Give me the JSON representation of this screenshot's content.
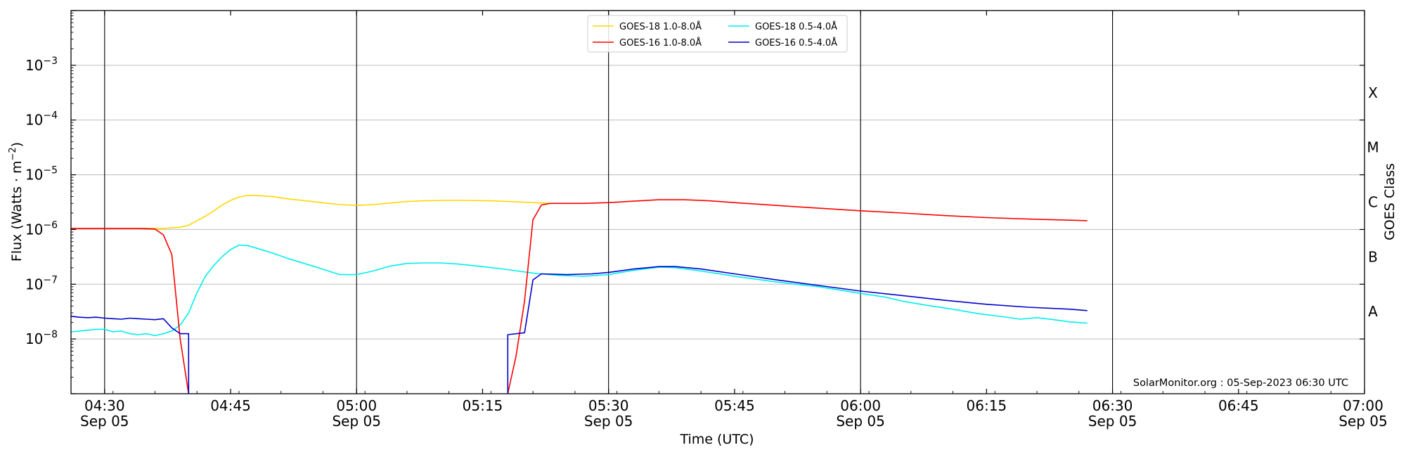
{
  "chart_data": {
    "type": "line",
    "xlabel": "Time (UTC)",
    "ylabel_main": "Flux (Watts · m",
    "ylabel_sup": "−2",
    "ylabel_close": ")",
    "right_axis_label": "GOES Class",
    "ylim": [
      1e-09,
      0.01
    ],
    "log_y": true,
    "xlim": [
      "04:26",
      "07:00"
    ],
    "grid": "horizontal at decades",
    "legend_position": "top-center",
    "credit": "SolarMonitor.org : 05-Sep-2023 06:30 UTC",
    "y_ticks": [
      {
        "base": "10",
        "exp": "−3",
        "value": 0.001
      },
      {
        "base": "10",
        "exp": "−4",
        "value": 0.0001
      },
      {
        "base": "10",
        "exp": "−5",
        "value": 1e-05
      },
      {
        "base": "10",
        "exp": "−6",
        "value": 1e-06
      },
      {
        "base": "10",
        "exp": "−7",
        "value": 1e-07
      },
      {
        "base": "10",
        "exp": "−8",
        "value": 1e-08
      }
    ],
    "x_ticks": [
      {
        "time": "04:30",
        "date": "Sep 05",
        "line": true
      },
      {
        "time": "04:45",
        "date": ""
      },
      {
        "time": "05:00",
        "date": "Sep 05",
        "line": true
      },
      {
        "time": "05:15",
        "date": ""
      },
      {
        "time": "05:30",
        "date": "Sep 05",
        "line": true
      },
      {
        "time": "05:45",
        "date": ""
      },
      {
        "time": "06:00",
        "date": "Sep 05",
        "line": true
      },
      {
        "time": "06:15",
        "date": ""
      },
      {
        "time": "06:30",
        "date": "Sep 05",
        "line": true
      },
      {
        "time": "06:45",
        "date": ""
      },
      {
        "time": "07:00",
        "date": "Sep 05"
      }
    ],
    "classes": [
      {
        "label": "X",
        "lo": 0.0001,
        "hi": 0.001
      },
      {
        "label": "M",
        "lo": 1e-05,
        "hi": 0.0001
      },
      {
        "label": "C",
        "lo": 1e-06,
        "hi": 1e-05
      },
      {
        "label": "B",
        "lo": 1e-07,
        "hi": 1e-06
      },
      {
        "label": "A",
        "lo": 1e-08,
        "hi": 1e-07
      }
    ],
    "series": [
      {
        "name": "GOES-18 1.0-8.0Å",
        "color": "#FFD700",
        "points": [
          [
            "04:26",
            1.05e-06
          ],
          [
            "04:30",
            1.05e-06
          ],
          [
            "04:34",
            1.05e-06
          ],
          [
            "04:37",
            1.05e-06
          ],
          [
            "04:39",
            1.1e-06
          ],
          [
            "04:40",
            1.2e-06
          ],
          [
            "04:41",
            1.45e-06
          ],
          [
            "04:42",
            1.75e-06
          ],
          [
            "04:43",
            2.2e-06
          ],
          [
            "04:44",
            2.8e-06
          ],
          [
            "04:45",
            3.4e-06
          ],
          [
            "04:46",
            3.9e-06
          ],
          [
            "04:47",
            4.2e-06
          ],
          [
            "04:48",
            4.2e-06
          ],
          [
            "04:50",
            4e-06
          ],
          [
            "04:52",
            3.6e-06
          ],
          [
            "04:55",
            3.2e-06
          ],
          [
            "04:58",
            2.85e-06
          ],
          [
            "05:00",
            2.75e-06
          ],
          [
            "05:02",
            2.85e-06
          ],
          [
            "05:04",
            3.05e-06
          ],
          [
            "05:06",
            3.25e-06
          ],
          [
            "05:08",
            3.35e-06
          ],
          [
            "05:10",
            3.4e-06
          ],
          [
            "05:13",
            3.4e-06
          ],
          [
            "05:16",
            3.35e-06
          ],
          [
            "05:19",
            3.2e-06
          ],
          [
            "05:22",
            3.05e-06
          ],
          [
            "05:23",
            3e-06
          ]
        ]
      },
      {
        "name": "GOES-18 0.5-4.0Å",
        "color": "#00EEEE",
        "points": [
          [
            "04:26",
            1.35e-08
          ],
          [
            "04:27",
            1.4e-08
          ],
          [
            "04:28",
            1.45e-08
          ],
          [
            "04:29",
            1.5e-08
          ],
          [
            "04:30",
            1.5e-08
          ],
          [
            "04:31",
            1.35e-08
          ],
          [
            "04:32",
            1.4e-08
          ],
          [
            "04:33",
            1.25e-08
          ],
          [
            "04:34",
            1.2e-08
          ],
          [
            "04:35",
            1.25e-08
          ],
          [
            "04:36",
            1.15e-08
          ],
          [
            "04:37",
            1.25e-08
          ],
          [
            "04:38",
            1.4e-08
          ],
          [
            "04:39",
            1.8e-08
          ],
          [
            "04:40",
            3e-08
          ],
          [
            "04:41",
            7e-08
          ],
          [
            "04:42",
            1.4e-07
          ],
          [
            "04:43",
            2.2e-07
          ],
          [
            "04:44",
            3.2e-07
          ],
          [
            "04:45",
            4.3e-07
          ],
          [
            "04:46",
            5.2e-07
          ],
          [
            "04:47",
            5.1e-07
          ],
          [
            "04:48",
            4.6e-07
          ],
          [
            "04:50",
            3.7e-07
          ],
          [
            "04:52",
            2.9e-07
          ],
          [
            "04:55",
            2.1e-07
          ],
          [
            "04:58",
            1.5e-07
          ],
          [
            "05:00",
            1.5e-07
          ],
          [
            "05:02",
            1.75e-07
          ],
          [
            "05:04",
            2.15e-07
          ],
          [
            "05:06",
            2.4e-07
          ],
          [
            "05:08",
            2.45e-07
          ],
          [
            "05:10",
            2.45e-07
          ],
          [
            "05:12",
            2.35e-07
          ],
          [
            "05:15",
            2.1e-07
          ],
          [
            "05:18",
            1.85e-07
          ],
          [
            "05:21",
            1.6e-07
          ],
          [
            "05:24",
            1.45e-07
          ],
          [
            "05:27",
            1.4e-07
          ],
          [
            "05:30",
            1.5e-07
          ],
          [
            "05:33",
            1.8e-07
          ],
          [
            "05:36",
            2.05e-07
          ],
          [
            "05:38",
            2e-07
          ],
          [
            "05:41",
            1.75e-07
          ],
          [
            "05:45",
            1.4e-07
          ],
          [
            "05:50",
            1.1e-07
          ],
          [
            "05:55",
            9e-08
          ],
          [
            "06:00",
            6.8e-08
          ],
          [
            "06:03",
            5.8e-08
          ],
          [
            "06:05",
            4.9e-08
          ],
          [
            "06:08",
            4.1e-08
          ],
          [
            "06:11",
            3.5e-08
          ],
          [
            "06:14",
            2.9e-08
          ],
          [
            "06:17",
            2.55e-08
          ],
          [
            "06:19",
            2.3e-08
          ],
          [
            "06:21",
            2.45e-08
          ],
          [
            "06:23",
            2.25e-08
          ],
          [
            "06:25",
            2.05e-08
          ],
          [
            "06:27",
            1.95e-08
          ]
        ]
      },
      {
        "name": "GOES-16 1.0-8.0Å",
        "color": "#FF0000",
        "points": [
          [
            "04:26",
            1.05e-06
          ],
          [
            "04:30",
            1.05e-06
          ],
          [
            "04:34",
            1.05e-06
          ],
          [
            "04:36",
            1.02e-06
          ],
          [
            "04:37",
            8e-07
          ],
          [
            "04:38",
            3.5e-07
          ],
          [
            "04:39",
            1e-08
          ],
          [
            "04:40",
            5e-10
          ],
          null,
          [
            "05:18",
            5e-10
          ],
          [
            "05:19",
            5e-09
          ],
          [
            "05:20",
            5e-08
          ],
          [
            "05:21",
            1.5e-06
          ],
          [
            "05:22",
            2.8e-06
          ],
          [
            "05:23",
            3e-06
          ],
          [
            "05:27",
            3e-06
          ],
          [
            "05:30",
            3.1e-06
          ],
          [
            "05:33",
            3.3e-06
          ],
          [
            "05:36",
            3.5e-06
          ],
          [
            "05:39",
            3.5e-06
          ],
          [
            "05:42",
            3.35e-06
          ],
          [
            "05:45",
            3.1e-06
          ],
          [
            "05:50",
            2.75e-06
          ],
          [
            "05:55",
            2.45e-06
          ],
          [
            "06:00",
            2.2e-06
          ],
          [
            "06:05",
            2e-06
          ],
          [
            "06:10",
            1.8e-06
          ],
          [
            "06:15",
            1.65e-06
          ],
          [
            "06:20",
            1.55e-06
          ],
          [
            "06:25",
            1.48e-06
          ],
          [
            "06:27",
            1.45e-06
          ]
        ]
      },
      {
        "name": "GOES-16 0.5-4.0Å",
        "color": "#0000CC",
        "points": [
          [
            "04:26",
            2.6e-08
          ],
          [
            "04:27",
            2.5e-08
          ],
          [
            "04:28",
            2.45e-08
          ],
          [
            "04:29",
            2.5e-08
          ],
          [
            "04:30",
            2.4e-08
          ],
          [
            "04:31",
            2.35e-08
          ],
          [
            "04:32",
            2.3e-08
          ],
          [
            "04:33",
            2.4e-08
          ],
          [
            "04:34",
            2.35e-08
          ],
          [
            "04:35",
            2.3e-08
          ],
          [
            "04:36",
            2.25e-08
          ],
          [
            "04:37",
            2.35e-08
          ],
          [
            "04:38",
            1.6e-08
          ],
          [
            "04:39",
            1.25e-08
          ],
          [
            "04:40",
            1.25e-08
          ],
          [
            "04:40",
            5e-10
          ],
          null,
          [
            "05:18",
            5e-10
          ],
          [
            "05:18",
            1.2e-08
          ],
          [
            "05:20",
            1.3e-08
          ],
          [
            "05:21",
            1.2e-07
          ],
          [
            "05:22",
            1.55e-07
          ],
          [
            "05:25",
            1.5e-07
          ],
          [
            "05:28",
            1.55e-07
          ],
          [
            "05:30",
            1.65e-07
          ],
          [
            "05:33",
            1.9e-07
          ],
          [
            "05:36",
            2.1e-07
          ],
          [
            "05:38",
            2.1e-07
          ],
          [
            "05:41",
            1.9e-07
          ],
          [
            "05:45",
            1.55e-07
          ],
          [
            "05:50",
            1.2e-07
          ],
          [
            "05:55",
            9.5e-08
          ],
          [
            "06:00",
            7.5e-08
          ],
          [
            "06:05",
            6.2e-08
          ],
          [
            "06:10",
            5.1e-08
          ],
          [
            "06:15",
            4.3e-08
          ],
          [
            "06:20",
            3.8e-08
          ],
          [
            "06:25",
            3.5e-08
          ],
          [
            "06:27",
            3.3e-08
          ]
        ]
      }
    ]
  }
}
